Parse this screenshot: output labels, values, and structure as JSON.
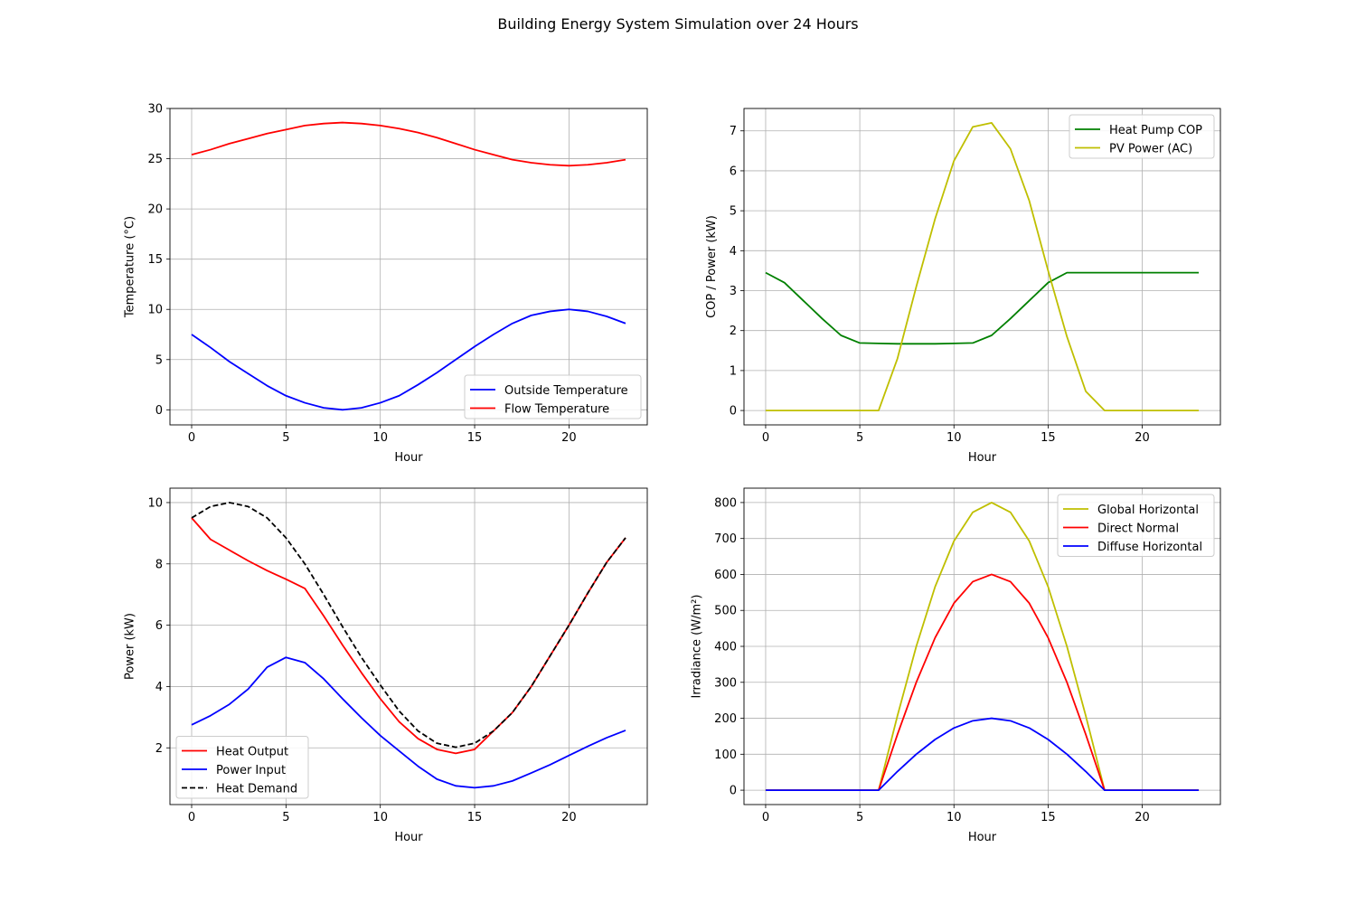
{
  "figure": {
    "title": "Building Energy System Simulation over 24 Hours"
  },
  "chart_data": [
    {
      "type": "line",
      "xlabel": "Hour",
      "ylabel": "Temperature (°C)",
      "xlim": [
        -1.15,
        24.15
      ],
      "ylim": [
        -1.5,
        30
      ],
      "xticks": [
        0,
        5,
        10,
        15,
        20
      ],
      "yticks": [
        0,
        5,
        10,
        15,
        20,
        25,
        30
      ],
      "grid": true,
      "legend": "lower right",
      "x": [
        0,
        1,
        2,
        3,
        4,
        5,
        6,
        7,
        8,
        9,
        10,
        11,
        12,
        13,
        14,
        15,
        16,
        17,
        18,
        19,
        20,
        21,
        22,
        23
      ],
      "series": [
        {
          "name": "Outside Temperature",
          "color": "#0000ff",
          "dash": "solid",
          "values": [
            7.5,
            6.2,
            4.8,
            3.6,
            2.4,
            1.4,
            0.7,
            0.2,
            0.0,
            0.2,
            0.7,
            1.4,
            2.5,
            3.7,
            5.0,
            6.3,
            7.5,
            8.6,
            9.4,
            9.8,
            10.0,
            9.8,
            9.3,
            8.6
          ]
        },
        {
          "name": "Flow Temperature",
          "color": "#ff0000",
          "dash": "solid",
          "values": [
            25.4,
            25.9,
            26.5,
            27.0,
            27.5,
            27.9,
            28.3,
            28.5,
            28.6,
            28.5,
            28.3,
            28.0,
            27.6,
            27.1,
            26.5,
            25.9,
            25.4,
            24.9,
            24.6,
            24.4,
            24.3,
            24.4,
            24.6,
            24.9
          ]
        }
      ]
    },
    {
      "type": "line",
      "xlabel": "Hour",
      "ylabel": "COP / Power (kW)",
      "xlim": [
        -1.15,
        24.15
      ],
      "ylim": [
        -0.36,
        7.56
      ],
      "xticks": [
        0,
        5,
        10,
        15,
        20
      ],
      "yticks": [
        0,
        1,
        2,
        3,
        4,
        5,
        6,
        7
      ],
      "grid": true,
      "legend": "upper right",
      "x": [
        0,
        1,
        2,
        3,
        4,
        5,
        6,
        7,
        8,
        9,
        10,
        11,
        12,
        13,
        14,
        15,
        16,
        17,
        18,
        19,
        20,
        21,
        22,
        23
      ],
      "series": [
        {
          "name": "Heat Pump COP",
          "color": "#008000",
          "dash": "solid",
          "values": [
            3.45,
            3.2,
            2.75,
            2.3,
            1.88,
            1.69,
            1.68,
            1.67,
            1.67,
            1.67,
            1.68,
            1.69,
            1.88,
            2.3,
            2.75,
            3.2,
            3.45,
            3.45,
            3.45,
            3.45,
            3.45,
            3.45,
            3.45,
            3.45
          ]
        },
        {
          "name": "PV Power (AC)",
          "color": "#bfbf00",
          "dash": "solid",
          "values": [
            0,
            0,
            0,
            0,
            0,
            0,
            0,
            1.3,
            3.1,
            4.8,
            6.25,
            7.1,
            7.2,
            6.55,
            5.25,
            3.5,
            1.85,
            0.48,
            0,
            0,
            0,
            0,
            0,
            0
          ]
        }
      ]
    },
    {
      "type": "line",
      "xlabel": "Hour",
      "ylabel": "Power (kW)",
      "xlim": [
        -1.15,
        24.15
      ],
      "ylim": [
        0.15,
        10.47
      ],
      "xticks": [
        0,
        5,
        10,
        15,
        20
      ],
      "yticks": [
        2,
        4,
        6,
        8,
        10
      ],
      "grid": true,
      "legend": "lower left",
      "x": [
        0,
        1,
        2,
        3,
        4,
        5,
        6,
        7,
        8,
        9,
        10,
        11,
        12,
        13,
        14,
        15,
        16,
        17,
        18,
        19,
        20,
        21,
        22,
        23
      ],
      "series": [
        {
          "name": "Heat Output",
          "color": "#ff0000",
          "dash": "solid",
          "values": [
            9.5,
            8.8,
            8.45,
            8.1,
            7.78,
            7.5,
            7.2,
            6.3,
            5.35,
            4.45,
            3.6,
            2.85,
            2.3,
            1.95,
            1.82,
            1.95,
            2.55,
            3.15,
            4.0,
            5.0,
            6.0,
            7.05,
            8.05,
            8.85
          ]
        },
        {
          "name": "Power Input",
          "color": "#0000ff",
          "dash": "solid",
          "values": [
            2.75,
            3.05,
            3.42,
            3.92,
            4.63,
            4.95,
            4.78,
            4.25,
            3.6,
            2.98,
            2.4,
            1.9,
            1.4,
            0.98,
            0.76,
            0.7,
            0.76,
            0.92,
            1.18,
            1.45,
            1.75,
            2.05,
            2.33,
            2.57
          ]
        },
        {
          "name": "Heat Demand",
          "color": "#000000",
          "dash": "dashed",
          "values": [
            9.5,
            9.87,
            10.0,
            9.87,
            9.5,
            8.85,
            8.0,
            7.0,
            5.95,
            4.95,
            4.05,
            3.2,
            2.55,
            2.15,
            2.02,
            2.15,
            2.55,
            3.15,
            4.0,
            5.0,
            6.0,
            7.05,
            8.05,
            8.85
          ]
        }
      ]
    },
    {
      "type": "line",
      "xlabel": "Hour",
      "ylabel": "Irradiance (W/m²)",
      "xlim": [
        -1.15,
        24.15
      ],
      "ylim": [
        -40,
        840
      ],
      "xticks": [
        0,
        5,
        10,
        15,
        20
      ],
      "yticks": [
        0,
        100,
        200,
        300,
        400,
        500,
        600,
        700,
        800
      ],
      "grid": true,
      "legend": "upper right",
      "x": [
        0,
        1,
        2,
        3,
        4,
        5,
        6,
        7,
        8,
        9,
        10,
        11,
        12,
        13,
        14,
        15,
        16,
        17,
        18,
        19,
        20,
        21,
        22,
        23
      ],
      "series": [
        {
          "name": "Global Horizontal",
          "color": "#bfbf00",
          "dash": "solid",
          "values": [
            0,
            0,
            0,
            0,
            0,
            0,
            0,
            207,
            400,
            566,
            693,
            773,
            800,
            773,
            693,
            566,
            400,
            207,
            0,
            0,
            0,
            0,
            0,
            0
          ]
        },
        {
          "name": "Direct Normal",
          "color": "#ff0000",
          "dash": "solid",
          "values": [
            0,
            0,
            0,
            0,
            0,
            0,
            0,
            155,
            300,
            424,
            520,
            580,
            600,
            580,
            520,
            424,
            300,
            155,
            0,
            0,
            0,
            0,
            0,
            0
          ]
        },
        {
          "name": "Diffuse Horizontal",
          "color": "#0000ff",
          "dash": "solid",
          "values": [
            0,
            0,
            0,
            0,
            0,
            0,
            0,
            52,
            100,
            141,
            173,
            193,
            200,
            193,
            173,
            141,
            100,
            52,
            0,
            0,
            0,
            0,
            0,
            0
          ]
        }
      ]
    }
  ]
}
